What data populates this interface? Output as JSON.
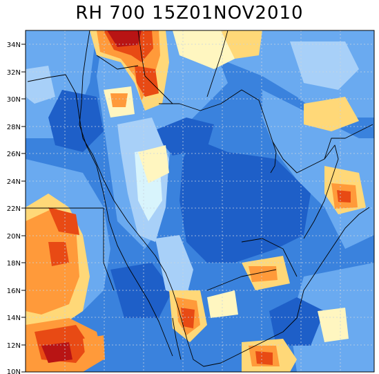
{
  "title": "RH 700 15Z01NOV2010",
  "axes": {
    "y_ticks": [
      "34N",
      "32N",
      "30N",
      "28N",
      "26N",
      "24N",
      "22N",
      "20N",
      "18N",
      "16N",
      "14N",
      "12N",
      "10N"
    ],
    "y_range_deg": [
      10,
      35
    ]
  },
  "colors": {
    "very_dry": "#1e5fc8",
    "dry": "#3a82dd",
    "mid_dry": "#6aaaf0",
    "light": "#a8d0f8",
    "very_light": "#d8f4fc",
    "neutral": "#fff6c0",
    "moist": "#ffd878",
    "humid": "#ff9a3a",
    "very_humid": "#e84a14",
    "saturated": "#b81414"
  }
}
